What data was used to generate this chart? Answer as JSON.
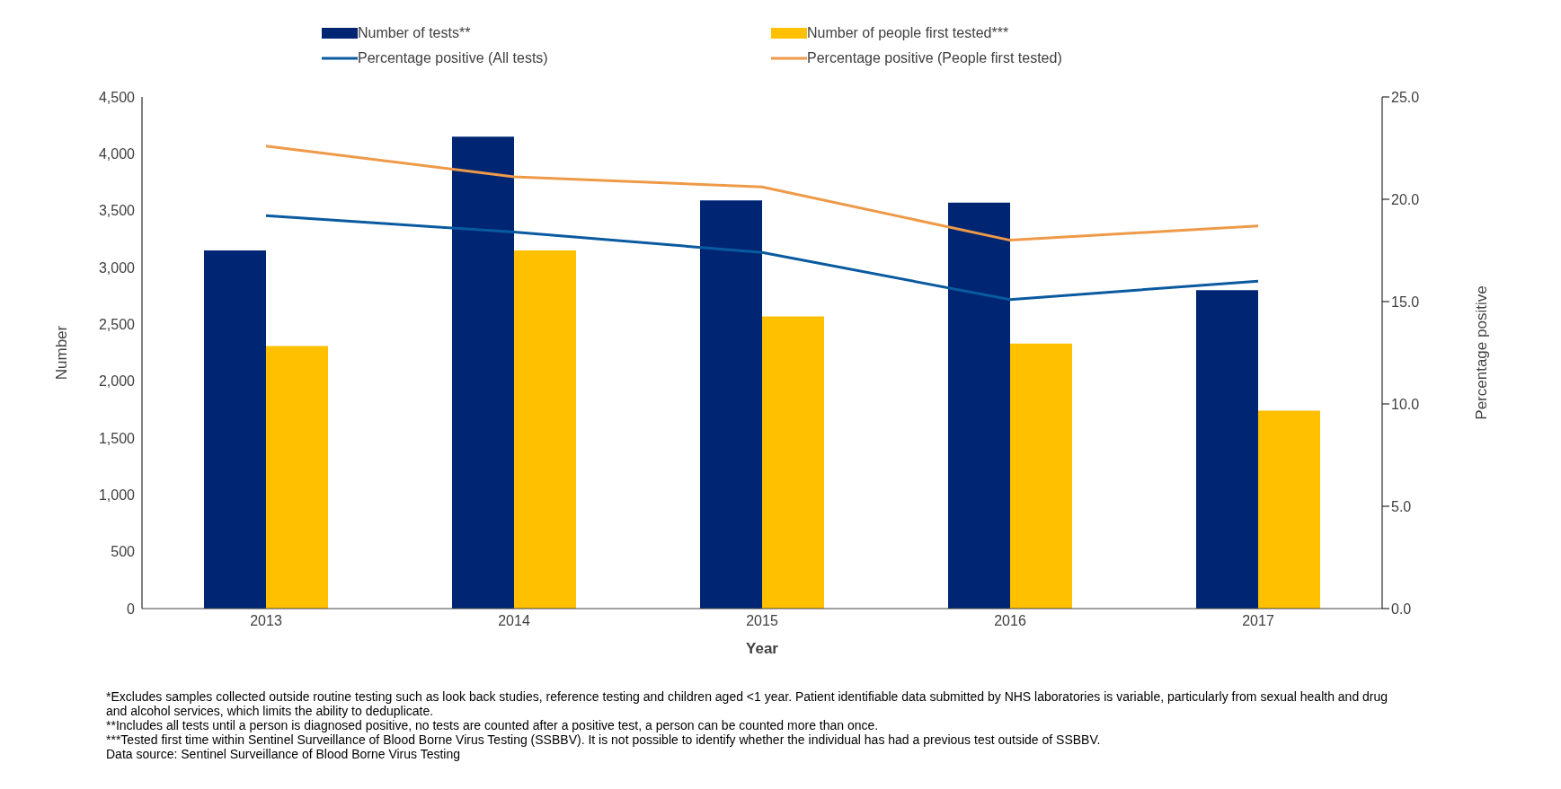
{
  "chart_data": {
    "type": "bar",
    "categories": [
      "2013",
      "2014",
      "2015",
      "2016",
      "2017"
    ],
    "series": [
      {
        "name": "Number of tests**",
        "color": "#002673",
        "values": [
          3150,
          4150,
          3590,
          3570,
          2800
        ]
      },
      {
        "name": "Number of people first tested***",
        "color": "#ffc000",
        "values": [
          2310,
          3150,
          2570,
          2330,
          1740
        ]
      },
      {
        "name": "Percentage positive (All tests)",
        "type": "line",
        "axis": "y2",
        "color": "#0a5aa0",
        "values": [
          19.2,
          18.4,
          17.4,
          15.1,
          16.0
        ]
      },
      {
        "name": "Percentage positive (People first tested)",
        "type": "line",
        "axis": "y2",
        "color": "#ee9a48",
        "values": [
          22.6,
          21.1,
          20.6,
          18.0,
          18.7
        ]
      }
    ],
    "xlabel": "Year",
    "ylabel": "Number",
    "y2label": "Percentage positive",
    "ylim": [
      0,
      4500
    ],
    "yticks": [
      {
        "value": 0,
        "label": "0"
      },
      {
        "value": 500,
        "label": "500"
      },
      {
        "value": 1000,
        "label": "1,000"
      },
      {
        "value": 1500,
        "label": "1,500"
      },
      {
        "value": 2000,
        "label": "2,000"
      },
      {
        "value": 2500,
        "label": "2,500"
      },
      {
        "value": 3000,
        "label": "3,000"
      },
      {
        "value": 3500,
        "label": "3,500"
      },
      {
        "value": 4000,
        "label": "4,000"
      },
      {
        "value": 4500,
        "label": "4,500"
      }
    ],
    "y2lim": [
      0,
      25
    ],
    "y2ticks": [
      {
        "value": 0,
        "label": "0.0"
      },
      {
        "value": 5,
        "label": "5.0"
      },
      {
        "value": 10,
        "label": "10.0"
      },
      {
        "value": 15,
        "label": "15.0"
      },
      {
        "value": 20,
        "label": "20.0"
      },
      {
        "value": 25,
        "label": "25.0"
      }
    ],
    "grid": false,
    "legend": "top",
    "marker": "none",
    "line_style": "solid",
    "annotations": [
      "*Excludes samples collected outside routine testing such as look back studies, reference testing and children aged <1 year. Patient identifiable data submitted by NHS laboratories is variable, particularly from sexual health and drug and alcohol services, which limits the ability to deduplicate.",
      "**Includes all tests until a person is diagnosed positive, no tests are counted after a positive test, a person can be counted more than once.",
      "***Tested first time within Sentinel Surveillance of Blood Borne Virus Testing (SSBBV). It is not possible to identify whether the individual has had a previous test outside of SSBBV.",
      "Data source: Sentinel Surveillance of Blood Borne Virus Testing"
    ]
  }
}
